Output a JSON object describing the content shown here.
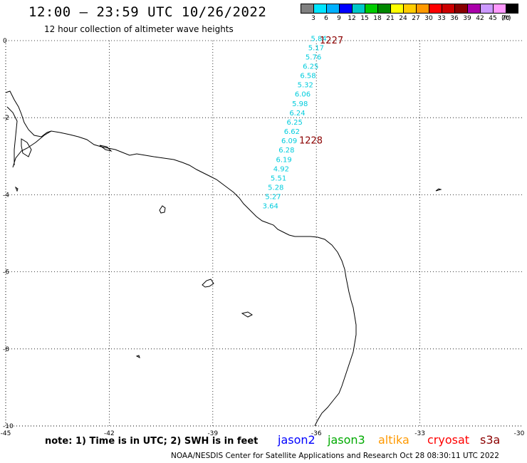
{
  "header": {
    "title": "12:00 – 23:59 UTC 10/26/2022",
    "subtitle": "12 hour collection of altimeter wave heights"
  },
  "colorbar": {
    "labels": [
      "3",
      "6",
      "9",
      "12",
      "15",
      "18",
      "21",
      "24",
      "27",
      "30",
      "33",
      "36",
      "39",
      "42",
      "45",
      "70"
    ],
    "unit": "(ft)",
    "colors": [
      "#808080",
      "#00e5ff",
      "#00b0ff",
      "#0000ff",
      "#00c8c8",
      "#00cc00",
      "#008800",
      "#ffff00",
      "#ffcc00",
      "#ff9900",
      "#ff0000",
      "#cc0000",
      "#880000",
      "#aa00aa",
      "#cc99ff",
      "#ff99ff",
      "#000000"
    ]
  },
  "axes": {
    "x_ticks": [
      "-45",
      "-42",
      "-39",
      "-36",
      "-33",
      "-30"
    ],
    "y_ticks": [
      "0",
      "-2",
      "-4",
      "-6",
      "-8",
      "-10"
    ]
  },
  "track": {
    "color": "#00ccdd",
    "values": [
      "5.84",
      "5.17",
      "5.76",
      "6.25",
      "6.58",
      "5.32",
      "6.06",
      "5.98",
      "6.24",
      "6.25",
      "6.62",
      "6.09",
      "6.28",
      "6.19",
      "4.92",
      "5.51",
      "5.28",
      "5.27",
      "3.64"
    ],
    "time_labels": [
      {
        "text": "1227",
        "color": "#8b0000",
        "lon": -35.9,
        "lat": 0.0
      },
      {
        "text": "1228",
        "color": "#8b0000",
        "lon": -36.5,
        "lat": -2.6
      }
    ]
  },
  "note": "note:  1) Time is in UTC;  2) SWH is in feet",
  "satellites": [
    {
      "name": "jason2",
      "color": "#0000ff"
    },
    {
      "name": "jason3",
      "color": "#00aa00"
    },
    {
      "name": "altika",
      "color": "#ff9900"
    },
    {
      "name": "cryosat",
      "color": "#ff0000"
    },
    {
      "name": "s3a",
      "color": "#8b0000"
    }
  ],
  "footer": "NOAA/NESDIS Center for Satellite Applications and Research     Oct 28 08:30:11 UTC 2022"
}
